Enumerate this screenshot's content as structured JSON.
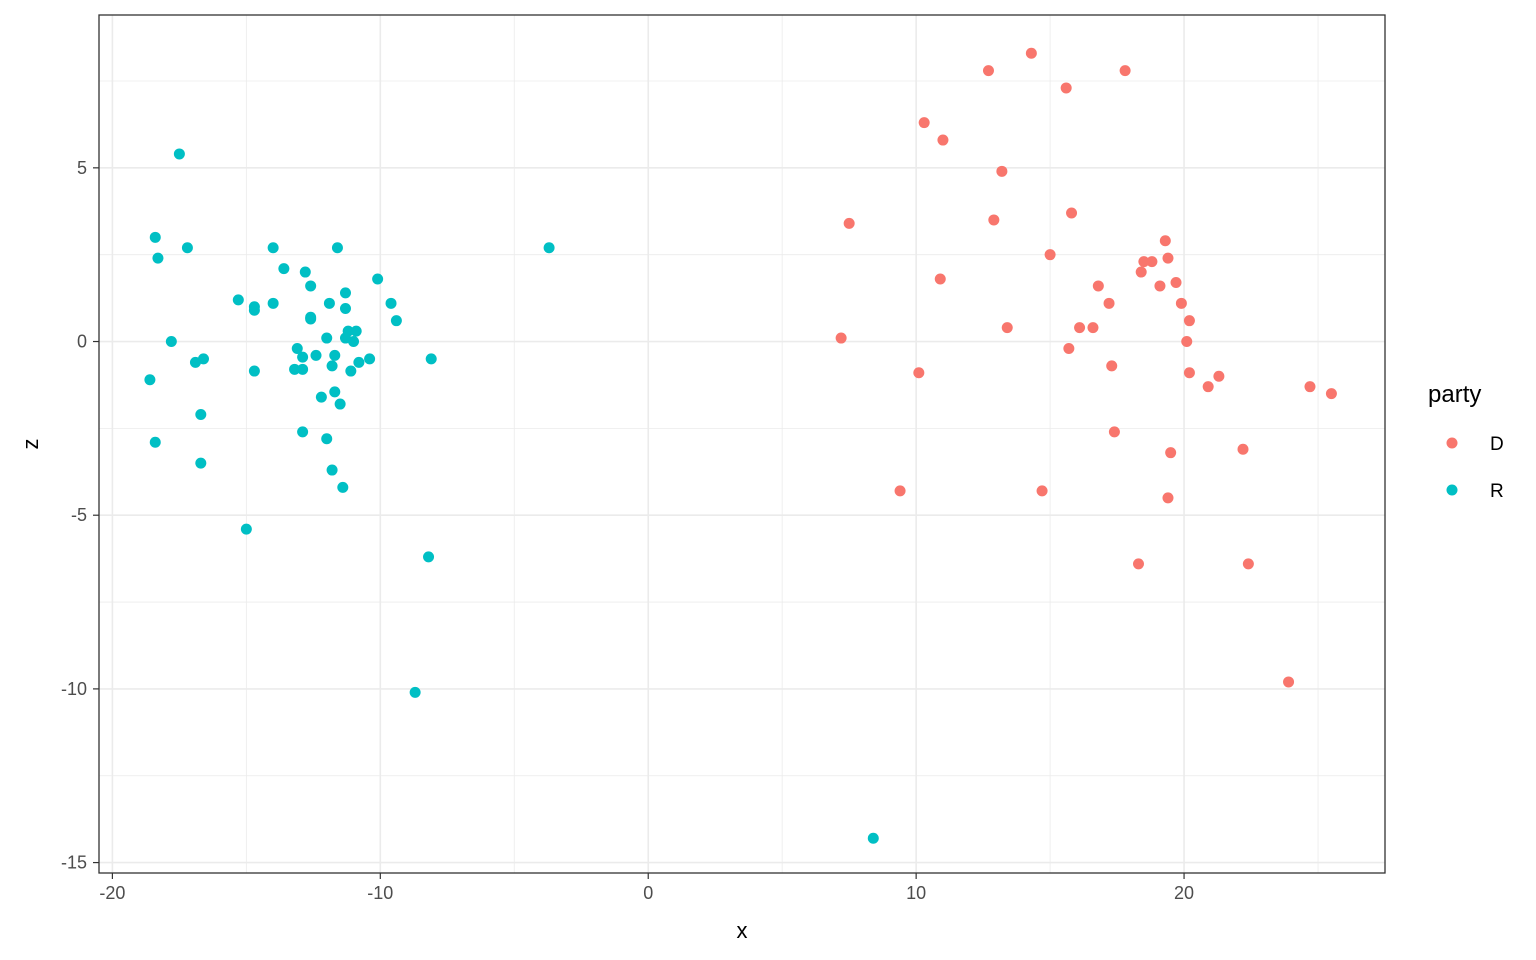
{
  "chart_data": {
    "type": "scatter",
    "xlabel": "x",
    "ylabel": "z",
    "xlim": [
      -20.5,
      27.5
    ],
    "ylim": [
      -15.3,
      9.4
    ],
    "x_ticks": [
      -20,
      -10,
      0,
      10,
      20
    ],
    "y_ticks": [
      -15,
      -10,
      -5,
      0,
      5
    ],
    "x_tick_labels": [
      "-20",
      "-10",
      "0",
      "10",
      "20"
    ],
    "y_tick_labels": [
      "-15",
      "-10",
      "-5",
      "0",
      "5"
    ],
    "grid": true,
    "legend": {
      "title": "party",
      "position": "right",
      "entries": [
        {
          "label": "D",
          "color": "#F8766D"
        },
        {
          "label": "R",
          "color": "#00BFC4"
        }
      ]
    },
    "series": [
      {
        "name": "D",
        "color": "#F8766D",
        "points": [
          [
            14.3,
            8.3
          ],
          [
            12.7,
            7.8
          ],
          [
            17.8,
            7.8
          ],
          [
            15.6,
            7.3
          ],
          [
            10.3,
            6.3
          ],
          [
            11.0,
            5.8
          ],
          [
            13.2,
            4.9
          ],
          [
            15.8,
            3.7
          ],
          [
            12.9,
            3.5
          ],
          [
            7.5,
            3.4
          ],
          [
            19.3,
            2.9
          ],
          [
            15.0,
            2.5
          ],
          [
            19.4,
            2.4
          ],
          [
            18.5,
            2.3
          ],
          [
            18.8,
            2.3
          ],
          [
            18.4,
            2.0
          ],
          [
            10.9,
            1.8
          ],
          [
            19.7,
            1.7
          ],
          [
            16.8,
            1.6
          ],
          [
            19.1,
            1.6
          ],
          [
            17.2,
            1.1
          ],
          [
            19.9,
            1.1
          ],
          [
            20.2,
            0.6
          ],
          [
            13.4,
            0.4
          ],
          [
            16.1,
            0.4
          ],
          [
            16.6,
            0.4
          ],
          [
            7.2,
            0.1
          ],
          [
            20.1,
            0.0
          ],
          [
            15.7,
            -0.2
          ],
          [
            17.3,
            -0.7
          ],
          [
            10.1,
            -0.9
          ],
          [
            20.2,
            -0.9
          ],
          [
            21.3,
            -1.0
          ],
          [
            20.9,
            -1.3
          ],
          [
            24.7,
            -1.3
          ],
          [
            25.5,
            -1.5
          ],
          [
            17.4,
            -2.6
          ],
          [
            22.2,
            -3.1
          ],
          [
            19.5,
            -3.2
          ],
          [
            9.4,
            -4.3
          ],
          [
            14.7,
            -4.3
          ],
          [
            19.4,
            -4.5
          ],
          [
            18.3,
            -6.4
          ],
          [
            22.4,
            -6.4
          ],
          [
            23.9,
            -9.8
          ]
        ]
      },
      {
        "name": "R",
        "color": "#00BFC4",
        "points": [
          [
            -17.5,
            5.4
          ],
          [
            -18.4,
            3.0
          ],
          [
            -17.2,
            2.7
          ],
          [
            -14.0,
            2.7
          ],
          [
            -11.6,
            2.7
          ],
          [
            -3.7,
            2.7
          ],
          [
            -18.3,
            2.4
          ],
          [
            -13.6,
            2.1
          ],
          [
            -12.8,
            2.0
          ],
          [
            -10.1,
            1.8
          ],
          [
            -12.6,
            1.6
          ],
          [
            -11.3,
            1.4
          ],
          [
            -15.3,
            1.2
          ],
          [
            -14.0,
            1.1
          ],
          [
            -11.9,
            1.1
          ],
          [
            -9.6,
            1.1
          ],
          [
            -14.7,
            1.0
          ],
          [
            -14.7,
            0.9
          ],
          [
            -11.3,
            0.95
          ],
          [
            -12.6,
            0.7
          ],
          [
            -12.6,
            0.65
          ],
          [
            -9.4,
            0.6
          ],
          [
            -11.2,
            0.3
          ],
          [
            -10.9,
            0.3
          ],
          [
            -12.0,
            0.1
          ],
          [
            -11.3,
            0.1
          ],
          [
            -11.0,
            0.0
          ],
          [
            -17.8,
            0.0
          ],
          [
            -13.1,
            -0.2
          ],
          [
            -12.4,
            -0.4
          ],
          [
            -11.7,
            -0.4
          ],
          [
            -12.9,
            -0.45
          ],
          [
            -16.6,
            -0.5
          ],
          [
            -10.4,
            -0.5
          ],
          [
            -8.1,
            -0.5
          ],
          [
            -10.8,
            -0.6
          ],
          [
            -16.9,
            -0.6
          ],
          [
            -11.8,
            -0.7
          ],
          [
            -13.2,
            -0.8
          ],
          [
            -12.9,
            -0.8
          ],
          [
            -14.7,
            -0.85
          ],
          [
            -11.1,
            -0.85
          ],
          [
            -18.6,
            -1.1
          ],
          [
            -11.7,
            -1.45
          ],
          [
            -12.2,
            -1.6
          ],
          [
            -11.5,
            -1.8
          ],
          [
            -16.7,
            -2.1
          ],
          [
            -12.9,
            -2.6
          ],
          [
            -12.0,
            -2.8
          ],
          [
            -18.4,
            -2.9
          ],
          [
            -16.7,
            -3.5
          ],
          [
            -11.8,
            -3.7
          ],
          [
            -11.4,
            -4.2
          ],
          [
            -15.0,
            -5.4
          ],
          [
            -8.2,
            -6.2
          ],
          [
            -8.7,
            -10.1
          ],
          [
            8.4,
            -14.3
          ]
        ]
      }
    ]
  }
}
